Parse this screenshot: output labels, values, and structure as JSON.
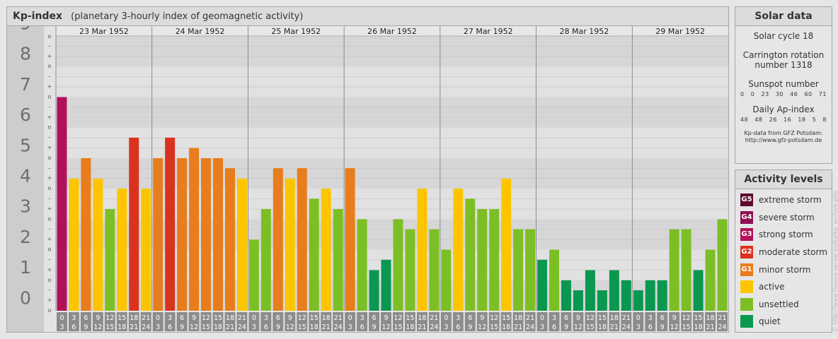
{
  "header": {
    "title": "Kp-index",
    "subtitle": "(planetary 3-hourly index of geomagnetic activity)"
  },
  "chart_data": {
    "type": "bar",
    "title": "Kp-index",
    "subtitle": "(planetary 3-hourly index of geomagnetic activity)",
    "ylim": [
      0,
      9
    ],
    "y_ticks": [
      "0",
      "1",
      "2",
      "3",
      "4",
      "5",
      "6",
      "7",
      "8",
      "9"
    ],
    "sub_ticks": [
      "o",
      "+",
      "–",
      "o"
    ],
    "days": [
      "23 Mar 1952",
      "24 Mar 1952",
      "25 Mar 1952",
      "26 Mar 1952",
      "27 Mar 1952",
      "28 Mar 1952",
      "29 Mar 1952"
    ],
    "slot_labels": [
      [
        "0",
        "3"
      ],
      [
        "3",
        "6"
      ],
      [
        "6",
        "9"
      ],
      [
        "9",
        "12"
      ],
      [
        "12",
        "15"
      ],
      [
        "15",
        "18"
      ],
      [
        "18",
        "21"
      ],
      [
        "21",
        "24"
      ]
    ],
    "values": [
      [
        7.0,
        4.33,
        5.0,
        4.33,
        3.33,
        4.0,
        5.67,
        4.0
      ],
      [
        5.0,
        5.67,
        5.0,
        5.33,
        5.0,
        5.0,
        4.67,
        4.33
      ],
      [
        2.33,
        3.33,
        4.67,
        4.33,
        4.67,
        3.67,
        4.0,
        3.33
      ],
      [
        4.67,
        3.0,
        1.33,
        1.67,
        3.0,
        2.67,
        4.0,
        2.67
      ],
      [
        2.0,
        4.0,
        3.67,
        3.33,
        3.33,
        4.33,
        2.67,
        2.67
      ],
      [
        1.67,
        2.0,
        1.0,
        0.67,
        1.33,
        0.67,
        1.33,
        1.0
      ],
      [
        0.67,
        1.0,
        1.0,
        2.67,
        2.67,
        1.33,
        2.0,
        3.0
      ]
    ],
    "colors": {
      "quiet": "#0a9850",
      "unsettled": "#7cbf25",
      "active": "#fcc500",
      "minor": "#e87d1c",
      "moderate": "#d9321f",
      "strong": "#b3105a",
      "severe": "#8f0f52",
      "extreme": "#5c0c2e"
    },
    "grid": true
  },
  "solar": {
    "heading": "Solar data",
    "cycle": "Solar cycle 18",
    "rotation_line1": "Carrington rotation",
    "rotation_line2": "number 1318",
    "sunspot_label": "Sunspot number",
    "sunspot_values": [
      "0",
      "0",
      "23",
      "30",
      "46",
      "60",
      "71"
    ],
    "ap_label": "Daily Ap-index",
    "ap_values": [
      "48",
      "48",
      "26",
      "16",
      "18",
      "5",
      "8"
    ],
    "credit_line1": "Kp-data from GFZ Potsdam:",
    "credit_line2": "http://www.gfz-potsdam.de"
  },
  "levels": {
    "heading": "Activity levels",
    "items": [
      {
        "code": "G5",
        "label": "extreme storm",
        "color": "#5c0c2e"
      },
      {
        "code": "G4",
        "label": "severe storm",
        "color": "#8f0f52"
      },
      {
        "code": "G3",
        "label": "strong storm",
        "color": "#b3105a"
      },
      {
        "code": "G2",
        "label": "moderate storm",
        "color": "#d9321f"
      },
      {
        "code": "G1",
        "label": "minor storm",
        "color": "#e87d1c"
      },
      {
        "code": "",
        "label": "active",
        "color": "#fcc500"
      },
      {
        "code": "",
        "label": "unsettled",
        "color": "#7cbf25"
      },
      {
        "code": "",
        "label": "quiet",
        "color": "#0a9850"
      }
    ]
  },
  "vertical_credit": "© http://www.theusa-server.eu/kp/kp_archive.php"
}
